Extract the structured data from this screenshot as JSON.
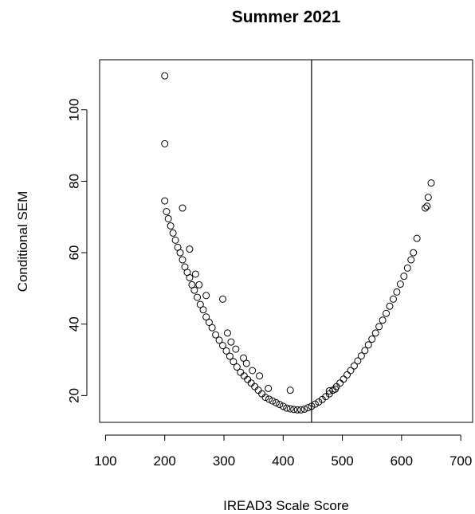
{
  "chart_data": {
    "type": "scatter",
    "title": "Summer 2021",
    "xlabel": "IREAD3 Scale Score",
    "ylabel": "Conditional SEM",
    "xlim": [
      90,
      720
    ],
    "ylim": [
      12.5,
      114
    ],
    "x_ticks": [
      100,
      200,
      300,
      400,
      500,
      600,
      700
    ],
    "y_ticks": [
      20,
      40,
      60,
      80,
      100
    ],
    "grid": false,
    "legend": "none",
    "reference_line": {
      "orientation": "vertical",
      "x": 448
    },
    "marker": {
      "shape": "open-circle",
      "color": "#000000"
    },
    "series": [
      {
        "x": [
          200,
          200,
          200,
          203,
          206,
          210,
          214,
          218,
          222,
          226,
          230,
          234,
          238,
          242,
          246,
          250,
          255,
          260,
          265,
          270,
          275,
          280,
          286,
          292,
          298,
          304,
          310,
          316,
          322,
          328,
          334,
          340,
          346,
          352,
          358,
          364,
          370,
          376,
          382,
          388,
          394,
          400,
          406,
          412,
          418,
          424,
          430,
          436,
          442,
          448,
          454,
          460,
          466,
          472,
          478,
          484,
          490,
          496,
          502,
          508,
          514,
          520,
          526,
          532,
          538,
          544,
          550,
          556,
          562,
          568,
          574,
          580,
          586,
          592,
          598,
          604,
          610,
          616,
          620,
          626,
          640,
          643,
          645,
          650,
          230,
          242,
          252,
          258,
          270,
          298,
          306,
          312,
          320,
          333,
          338,
          348,
          360,
          375,
          412,
          478,
          488
        ],
        "y": [
          109.5,
          90.5,
          74.5,
          71.5,
          69.5,
          67.5,
          65.5,
          63.5,
          61.5,
          60,
          58,
          56,
          54.5,
          53,
          51,
          49.5,
          47.5,
          45.5,
          44,
          42,
          40.5,
          39,
          37,
          35.5,
          34,
          32.5,
          31,
          29.5,
          28,
          26.5,
          25.5,
          24.5,
          23.5,
          22.5,
          21.5,
          20.5,
          19.5,
          19,
          18.5,
          18,
          17.5,
          17,
          16.5,
          16.3,
          16.1,
          16,
          16,
          16.2,
          16.6,
          17,
          17.6,
          18.2,
          18.9,
          19.7,
          20.5,
          21.5,
          22.5,
          23.5,
          24.6,
          25.8,
          27,
          28.3,
          29.7,
          31.1,
          32.6,
          34.2,
          35.8,
          37.5,
          39.3,
          41.1,
          43,
          45,
          47,
          49,
          51.2,
          53.4,
          55.7,
          58,
          60,
          64,
          72.5,
          73,
          75.5,
          79.5,
          72.5,
          61,
          54,
          51,
          48,
          47,
          37.5,
          35,
          33,
          30.5,
          29,
          27,
          25.5,
          22,
          21.5,
          21.3,
          21.8
        ]
      }
    ]
  }
}
